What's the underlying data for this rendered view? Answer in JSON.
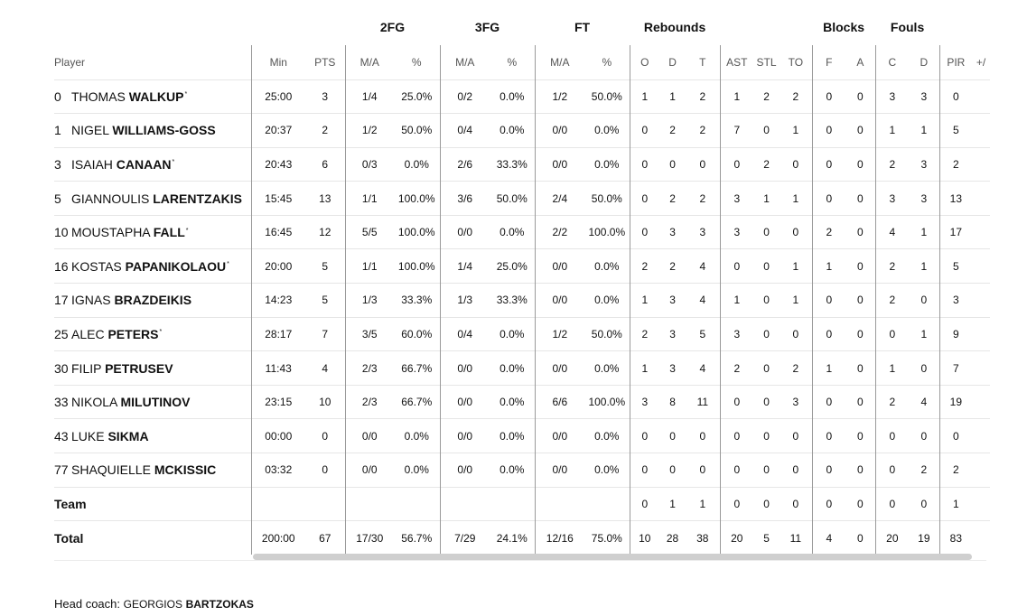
{
  "groups": {
    "fg2": "2FG",
    "fg3": "3FG",
    "ft": "FT",
    "reb": "Rebounds",
    "blk": "Blocks",
    "fouls": "Fouls"
  },
  "headers": {
    "player": "Player",
    "min": "Min",
    "pts": "PTS",
    "fg2_ma": "M/A",
    "fg2_pct": "%",
    "fg3_ma": "M/A",
    "fg3_pct": "%",
    "ft_ma": "M/A",
    "ft_pct": "%",
    "reb_o": "O",
    "reb_d": "D",
    "reb_t": "T",
    "ast": "AST",
    "stl": "STL",
    "to": "TO",
    "blk_f": "F",
    "blk_a": "A",
    "foul_c": "C",
    "foul_d": "D",
    "pir": "PIR",
    "pm": "+/"
  },
  "players": [
    {
      "no": "0",
      "first": "THOMAS",
      "last": "WALKUP",
      "star": "*",
      "min": "25:00",
      "pts": "3",
      "fg2": "1/4",
      "fg2p": "25.0%",
      "fg3": "0/2",
      "fg3p": "0.0%",
      "ft": "1/2",
      "ftp": "50.0%",
      "o": "1",
      "d": "1",
      "t": "2",
      "ast": "1",
      "stl": "2",
      "to": "2",
      "bf": "0",
      "ba": "0",
      "fc": "3",
      "fd": "3",
      "pir": "0"
    },
    {
      "no": "1",
      "first": "NIGEL",
      "last": "WILLIAMS-GOSS",
      "star": "",
      "min": "20:37",
      "pts": "2",
      "fg2": "1/2",
      "fg2p": "50.0%",
      "fg3": "0/4",
      "fg3p": "0.0%",
      "ft": "0/0",
      "ftp": "0.0%",
      "o": "0",
      "d": "2",
      "t": "2",
      "ast": "7",
      "stl": "0",
      "to": "1",
      "bf": "0",
      "ba": "0",
      "fc": "1",
      "fd": "1",
      "pir": "5"
    },
    {
      "no": "3",
      "first": "ISAIAH",
      "last": "CANAAN",
      "star": "*",
      "min": "20:43",
      "pts": "6",
      "fg2": "0/3",
      "fg2p": "0.0%",
      "fg3": "2/6",
      "fg3p": "33.3%",
      "ft": "0/0",
      "ftp": "0.0%",
      "o": "0",
      "d": "0",
      "t": "0",
      "ast": "0",
      "stl": "2",
      "to": "0",
      "bf": "0",
      "ba": "0",
      "fc": "2",
      "fd": "3",
      "pir": "2"
    },
    {
      "no": "5",
      "first": "GIANNOULIS",
      "last": "LARENTZAKIS",
      "star": "",
      "min": "15:45",
      "pts": "13",
      "fg2": "1/1",
      "fg2p": "100.0%",
      "fg3": "3/6",
      "fg3p": "50.0%",
      "ft": "2/4",
      "ftp": "50.0%",
      "o": "0",
      "d": "2",
      "t": "2",
      "ast": "3",
      "stl": "1",
      "to": "1",
      "bf": "0",
      "ba": "0",
      "fc": "3",
      "fd": "3",
      "pir": "13"
    },
    {
      "no": "10",
      "first": "MOUSTAPHA",
      "last": "FALL",
      "star": "*",
      "min": "16:45",
      "pts": "12",
      "fg2": "5/5",
      "fg2p": "100.0%",
      "fg3": "0/0",
      "fg3p": "0.0%",
      "ft": "2/2",
      "ftp": "100.0%",
      "o": "0",
      "d": "3",
      "t": "3",
      "ast": "3",
      "stl": "0",
      "to": "0",
      "bf": "2",
      "ba": "0",
      "fc": "4",
      "fd": "1",
      "pir": "17"
    },
    {
      "no": "16",
      "first": "KOSTAS",
      "last": "PAPANIKOLAOU",
      "star": "*",
      "min": "20:00",
      "pts": "5",
      "fg2": "1/1",
      "fg2p": "100.0%",
      "fg3": "1/4",
      "fg3p": "25.0%",
      "ft": "0/0",
      "ftp": "0.0%",
      "o": "2",
      "d": "2",
      "t": "4",
      "ast": "0",
      "stl": "0",
      "to": "1",
      "bf": "1",
      "ba": "0",
      "fc": "2",
      "fd": "1",
      "pir": "5"
    },
    {
      "no": "17",
      "first": "IGNAS",
      "last": "BRAZDEIKIS",
      "star": "",
      "min": "14:23",
      "pts": "5",
      "fg2": "1/3",
      "fg2p": "33.3%",
      "fg3": "1/3",
      "fg3p": "33.3%",
      "ft": "0/0",
      "ftp": "0.0%",
      "o": "1",
      "d": "3",
      "t": "4",
      "ast": "1",
      "stl": "0",
      "to": "1",
      "bf": "0",
      "ba": "0",
      "fc": "2",
      "fd": "0",
      "pir": "3"
    },
    {
      "no": "25",
      "first": "ALEC",
      "last": "PETERS",
      "star": "*",
      "min": "28:17",
      "pts": "7",
      "fg2": "3/5",
      "fg2p": "60.0%",
      "fg3": "0/4",
      "fg3p": "0.0%",
      "ft": "1/2",
      "ftp": "50.0%",
      "o": "2",
      "d": "3",
      "t": "5",
      "ast": "3",
      "stl": "0",
      "to": "0",
      "bf": "0",
      "ba": "0",
      "fc": "0",
      "fd": "1",
      "pir": "9"
    },
    {
      "no": "30",
      "first": "FILIP",
      "last": "PETRUSEV",
      "star": "",
      "min": "11:43",
      "pts": "4",
      "fg2": "2/3",
      "fg2p": "66.7%",
      "fg3": "0/0",
      "fg3p": "0.0%",
      "ft": "0/0",
      "ftp": "0.0%",
      "o": "1",
      "d": "3",
      "t": "4",
      "ast": "2",
      "stl": "0",
      "to": "2",
      "bf": "1",
      "ba": "0",
      "fc": "1",
      "fd": "0",
      "pir": "7"
    },
    {
      "no": "33",
      "first": "NIKOLA",
      "last": "MILUTINOV",
      "star": "",
      "min": "23:15",
      "pts": "10",
      "fg2": "2/3",
      "fg2p": "66.7%",
      "fg3": "0/0",
      "fg3p": "0.0%",
      "ft": "6/6",
      "ftp": "100.0%",
      "o": "3",
      "d": "8",
      "t": "11",
      "ast": "0",
      "stl": "0",
      "to": "3",
      "bf": "0",
      "ba": "0",
      "fc": "2",
      "fd": "4",
      "pir": "19"
    },
    {
      "no": "43",
      "first": "LUKE",
      "last": "SIKMA",
      "star": "",
      "min": "00:00",
      "pts": "0",
      "fg2": "0/0",
      "fg2p": "0.0%",
      "fg3": "0/0",
      "fg3p": "0.0%",
      "ft": "0/0",
      "ftp": "0.0%",
      "o": "0",
      "d": "0",
      "t": "0",
      "ast": "0",
      "stl": "0",
      "to": "0",
      "bf": "0",
      "ba": "0",
      "fc": "0",
      "fd": "0",
      "pir": "0"
    },
    {
      "no": "77",
      "first": "SHAQUIELLE",
      "last": "MCKISSIC",
      "star": "",
      "min": "03:32",
      "pts": "0",
      "fg2": "0/0",
      "fg2p": "0.0%",
      "fg3": "0/0",
      "fg3p": "0.0%",
      "ft": "0/0",
      "ftp": "0.0%",
      "o": "0",
      "d": "0",
      "t": "0",
      "ast": "0",
      "stl": "0",
      "to": "0",
      "bf": "0",
      "ba": "0",
      "fc": "0",
      "fd": "2",
      "pir": "2"
    }
  ],
  "team": {
    "label": "Team",
    "min": "",
    "pts": "",
    "fg2": "",
    "fg2p": "",
    "fg3": "",
    "fg3p": "",
    "ft": "",
    "ftp": "",
    "o": "0",
    "d": "1",
    "t": "1",
    "ast": "0",
    "stl": "0",
    "to": "0",
    "bf": "0",
    "ba": "0",
    "fc": "0",
    "fd": "0",
    "pir": "1"
  },
  "total": {
    "label": "Total",
    "min": "200:00",
    "pts": "67",
    "fg2": "17/30",
    "fg2p": "56.7%",
    "fg3": "7/29",
    "fg3p": "24.1%",
    "ft": "12/16",
    "ftp": "75.0%",
    "o": "10",
    "d": "28",
    "t": "38",
    "ast": "20",
    "stl": "5",
    "to": "11",
    "bf": "4",
    "ba": "0",
    "fc": "20",
    "fd": "19",
    "pir": "83"
  },
  "coach": {
    "label": "Head coach:",
    "first": "GEORGIOS",
    "last": "BARTZOKAS"
  }
}
